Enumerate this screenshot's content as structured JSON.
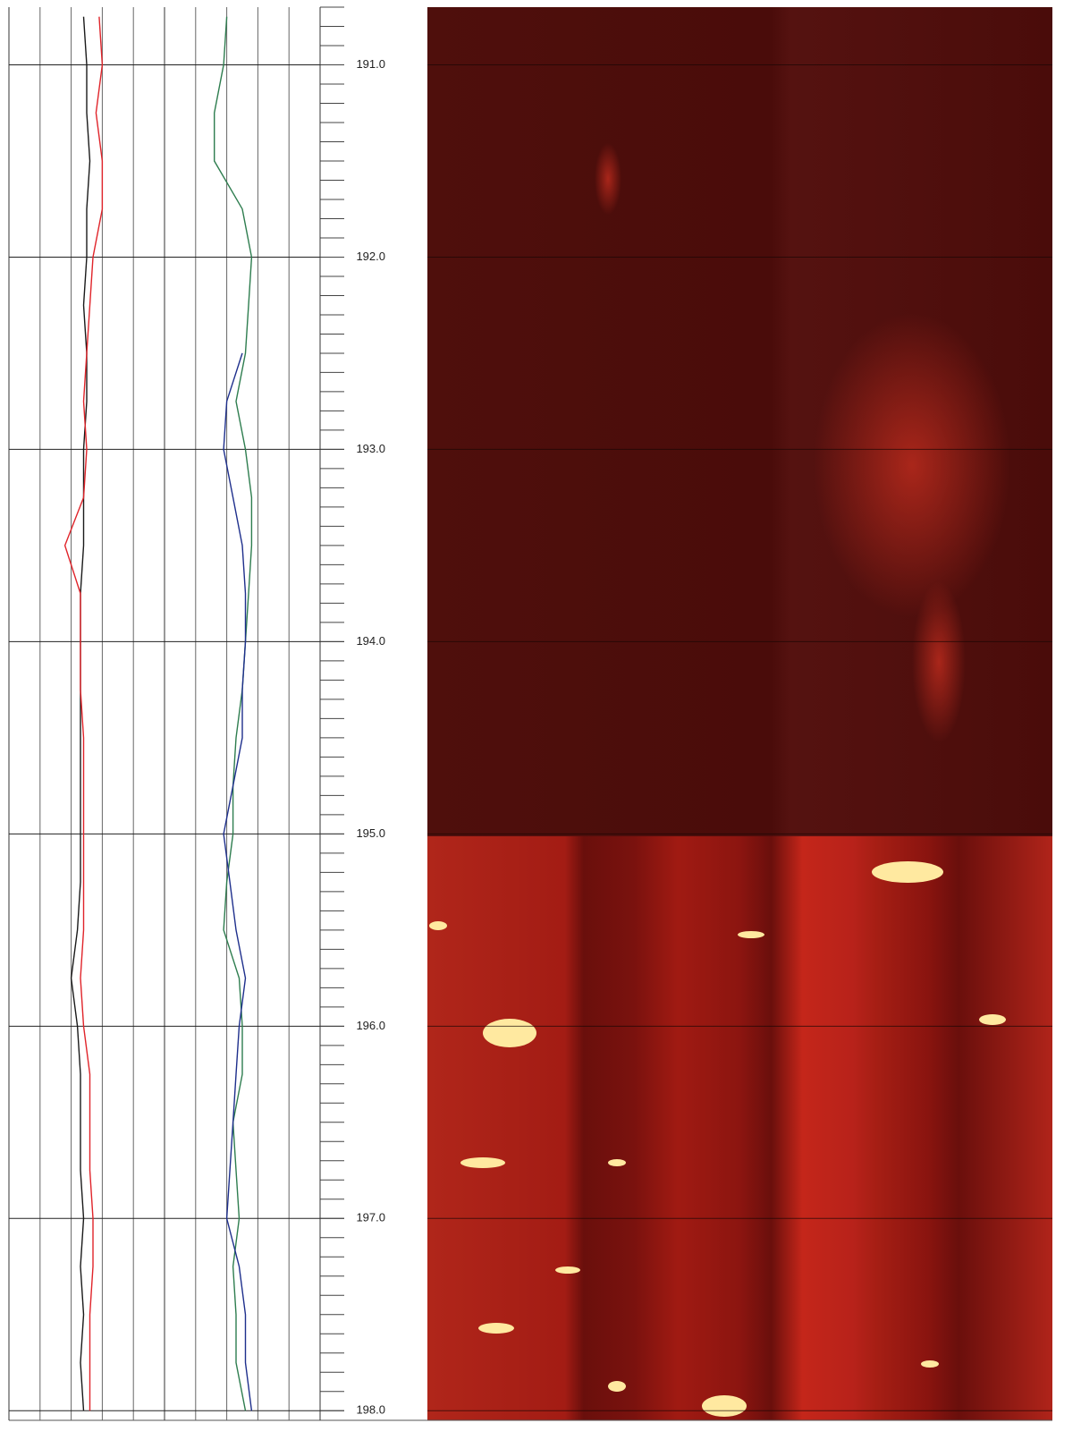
{
  "chart_data": {
    "type": "line",
    "x": [
      190.75,
      191.0,
      191.25,
      191.5,
      191.75,
      192.0,
      192.25,
      192.5,
      192.75,
      193.0,
      193.25,
      193.5,
      193.75,
      194.0,
      194.25,
      194.5,
      194.75,
      195.0,
      195.25,
      195.5,
      195.75,
      196.0,
      196.25,
      196.5,
      196.75,
      197.0,
      197.25,
      197.5,
      197.75,
      198.0
    ],
    "xlim": [
      190.7,
      198.05
    ],
    "xticks": [
      {
        "value": 191,
        "label": "191.0"
      },
      {
        "value": 192,
        "label": "192.0"
      },
      {
        "value": 193,
        "label": "193.0"
      },
      {
        "value": 194,
        "label": "194.0"
      },
      {
        "value": 195,
        "label": "195.0"
      },
      {
        "value": 196,
        "label": "196.0"
      },
      {
        "value": 197,
        "label": "197.0"
      },
      {
        "value": 198,
        "label": "198.0"
      }
    ],
    "ylim": [
      0,
      10
    ],
    "yticks": [
      0,
      1,
      2,
      3,
      4,
      5,
      6,
      7,
      8,
      9,
      10
    ],
    "grid": true,
    "series": [
      {
        "color": "#1a1a1a",
        "values": [
          2.4,
          2.5,
          2.5,
          2.6,
          2.5,
          2.5,
          2.4,
          2.5,
          2.5,
          2.4,
          2.4,
          2.4,
          2.3,
          2.3,
          2.3,
          2.3,
          2.3,
          2.3,
          2.3,
          2.2,
          2.0,
          2.2,
          2.3,
          2.3,
          2.3,
          2.4,
          2.3,
          2.4,
          2.3,
          2.4
        ]
      },
      {
        "color": "#e0242a",
        "values": [
          2.9,
          3.0,
          2.8,
          3.0,
          3.0,
          2.7,
          2.6,
          2.5,
          2.4,
          2.5,
          2.4,
          1.8,
          2.3,
          2.3,
          2.3,
          2.4,
          2.4,
          2.4,
          2.4,
          2.4,
          2.3,
          2.4,
          2.6,
          2.6,
          2.6,
          2.7,
          2.7,
          2.6,
          2.6,
          2.6
        ]
      },
      {
        "color": "#2e7d4f",
        "values": [
          7.0,
          6.9,
          6.6,
          6.6,
          7.5,
          7.8,
          7.7,
          7.6,
          7.3,
          7.6,
          7.8,
          7.8,
          7.7,
          7.6,
          7.5,
          7.3,
          7.2,
          7.2,
          7.0,
          6.9,
          7.4,
          7.5,
          7.5,
          7.2,
          7.3,
          7.4,
          7.2,
          7.3,
          7.3,
          7.6
        ]
      },
      {
        "color": "#1e2f8c",
        "values": [
          null,
          null,
          null,
          null,
          null,
          null,
          null,
          7.5,
          7.0,
          6.9,
          7.2,
          7.5,
          7.6,
          7.6,
          7.5,
          7.5,
          7.2,
          6.9,
          7.1,
          7.3,
          7.6,
          7.4,
          7.3,
          7.2,
          7.1,
          7.0,
          7.4,
          7.6,
          7.6,
          7.8
        ]
      }
    ]
  }
}
